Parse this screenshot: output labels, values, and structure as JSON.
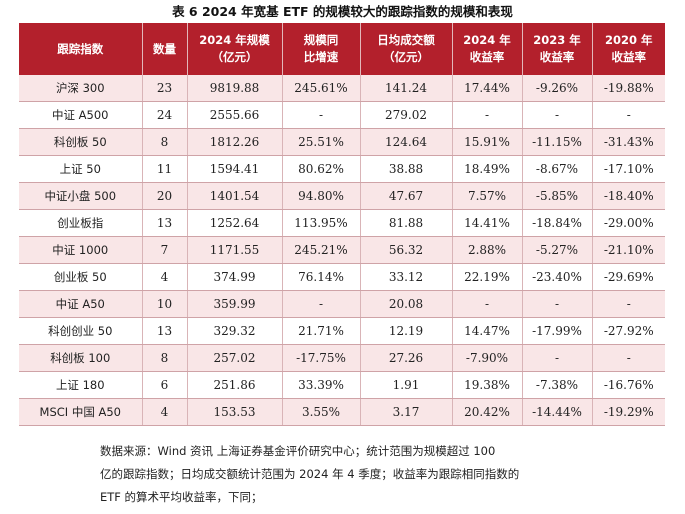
{
  "title": "表 6  2024 年宽基 ETF 的规模较大的跟踪指数的规模和表现",
  "headers": [
    [
      "跟踪指数"
    ],
    [
      "数量"
    ],
    [
      "2024 年规模",
      "（亿元）"
    ],
    [
      "规模同",
      "比增速"
    ],
    [
      "日均成交额",
      "（亿元）"
    ],
    [
      "2024 年",
      "收益率"
    ],
    [
      "2023 年",
      "收益率"
    ],
    [
      "2020 年",
      "收益率"
    ]
  ],
  "rows": [
    [
      "沪深 300",
      "23",
      "9819.88",
      "245.61%",
      "141.24",
      "17.44%",
      "-9.26%",
      "-19.88%"
    ],
    [
      "中证 A500",
      "24",
      "2555.66",
      "-",
      "279.02",
      "-",
      "-",
      "-"
    ],
    [
      "科创板 50",
      "8",
      "1812.26",
      "25.51%",
      "124.64",
      "15.91%",
      "-11.15%",
      "-31.43%"
    ],
    [
      "上证 50",
      "11",
      "1594.41",
      "80.62%",
      "38.88",
      "18.49%",
      "-8.67%",
      "-17.10%"
    ],
    [
      "中证小盘 500",
      "20",
      "1401.54",
      "94.80%",
      "47.67",
      "7.57%",
      "-5.85%",
      "-18.40%"
    ],
    [
      "创业板指",
      "13",
      "1252.64",
      "113.95%",
      "81.88",
      "14.41%",
      "-18.84%",
      "-29.00%"
    ],
    [
      "中证 1000",
      "7",
      "1171.55",
      "245.21%",
      "56.32",
      "2.88%",
      "-5.27%",
      "-21.10%"
    ],
    [
      "创业板 50",
      "4",
      "374.99",
      "76.14%",
      "33.12",
      "22.19%",
      "-23.40%",
      "-29.69%"
    ],
    [
      "中证 A50",
      "10",
      "359.99",
      "-",
      "20.08",
      "-",
      "-",
      "-"
    ],
    [
      "科创创业 50",
      "13",
      "329.32",
      "21.71%",
      "12.19",
      "14.47%",
      "-17.99%",
      "-27.92%"
    ],
    [
      "科创板 100",
      "8",
      "257.02",
      "-17.75%",
      "27.26",
      "-7.90%",
      "-",
      "-"
    ],
    [
      "上证 180",
      "6",
      "251.86",
      "33.39%",
      "1.91",
      "19.38%",
      "-7.38%",
      "-16.76%"
    ],
    [
      "MSCI 中国 A50",
      "4",
      "153.53",
      "3.55%",
      "3.17",
      "20.42%",
      "-14.44%",
      "-19.29%"
    ]
  ],
  "footnote": "数据来源：Wind 资讯  上海证券基金评价研究中心；统计范围为规模超过 100\n亿的跟踪指数；日均成交额统计范围为 2024 年 4 季度；收益率为跟踪相同指数的\nETF 的算术平均收益率，下同；",
  "colors": {
    "header_bg": "#b3202c",
    "stripe_bg": "#f9e6e7"
  }
}
